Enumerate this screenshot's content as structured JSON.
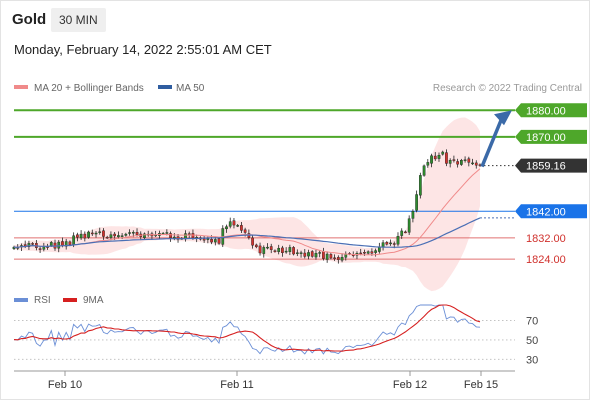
{
  "header": {
    "symbol": "Gold",
    "timeframe": "30 MIN",
    "datetime": "Monday, February 14, 2022 2:55:01 AM CET"
  },
  "colors": {
    "candle_up": "#2e8b2e",
    "candle_down": "#d0312d",
    "ma20": "#f08a8a",
    "bollinger_fill": "#fde0e0",
    "ma50": "#4a6fb5",
    "green_level": "#4ea72a",
    "blue_level": "#1a73e8",
    "red_level": "#e07070",
    "arrow": "#3b6aa8",
    "rsi": "#6b8fd6",
    "rsi_ma": "#d62020"
  },
  "chart_data": [
    {
      "type": "candlestick",
      "legend": [
        {
          "name": "MA 20 + Bollinger Bands",
          "color": "#f08a8a"
        },
        {
          "name": "MA 50",
          "color": "#2f5da0"
        }
      ],
      "attribution": "Research © 2022 Trading Central",
      "x_ticks": [
        "Feb 10",
        "Feb 11",
        "Feb 12",
        "Feb 15"
      ],
      "levels": [
        {
          "value": 1880.0,
          "label": "1880.00",
          "style": "green"
        },
        {
          "value": 1870.0,
          "label": "1870.00",
          "style": "green"
        },
        {
          "value": 1859.16,
          "label": "1859.16",
          "style": "current"
        },
        {
          "value": 1842.0,
          "label": "1842.00",
          "style": "blue"
        },
        {
          "value": 1832.0,
          "label": "1832.00",
          "style": "red"
        },
        {
          "value": 1824.0,
          "label": "1824.00",
          "style": "red"
        }
      ],
      "ylim": [
        1815,
        1885
      ],
      "closes": [
        1828.5,
        1828.4,
        1829.1,
        1828.9,
        1829.9,
        1829.7,
        1828.3,
        1827.8,
        1828.6,
        1828.7,
        1830.3,
        1828.1,
        1830.4,
        1829.2,
        1830.6,
        1829.4,
        1832.8,
        1832.2,
        1833.4,
        1831.9,
        1834.2,
        1833.7,
        1833.8,
        1834.3,
        1832.5,
        1832.1,
        1833.2,
        1832.7,
        1832.9,
        1832.8,
        1833.4,
        1834.0,
        1834.1,
        1833.2,
        1832.4,
        1833.5,
        1833.4,
        1832.7,
        1833.1,
        1833.7,
        1833.7,
        1834.0,
        1832.0,
        1832.3,
        1831.4,
        1831.8,
        1833.6,
        1833.4,
        1832.0,
        1832.2,
        1831.5,
        1831.1,
        1831.7,
        1830.4,
        1831.4,
        1829.9,
        1835.5,
        1836.2,
        1838.1,
        1836.8,
        1836.7,
        1834.8,
        1834.0,
        1832.1,
        1829.2,
        1828.6,
        1826.3,
        1828.4,
        1828.5,
        1827.5,
        1826.9,
        1828.1,
        1826.4,
        1827.0,
        1828.4,
        1825.9,
        1826.4,
        1826.4,
        1825.0,
        1826.5,
        1825.0,
        1826.2,
        1826.5,
        1824.2,
        1825.9,
        1824.4,
        1824.3,
        1823.8,
        1824.7,
        1825.9,
        1826.0,
        1825.6,
        1826.2,
        1826.2,
        1826.4,
        1826.8,
        1826.2,
        1827.2,
        1828.6,
        1830.2,
        1829.6,
        1830.1,
        1829.6,
        1832.6,
        1834.6,
        1834.2,
        1839.2,
        1842.0,
        1848.3,
        1855.5,
        1859.1,
        1860.4,
        1862.9,
        1861.7,
        1863.1,
        1864.3,
        1860.0,
        1861.2,
        1861.1,
        1859.7,
        1861.2,
        1861.4,
        1860.4,
        1860.2,
        1859.3,
        1859.2
      ]
    },
    {
      "type": "line",
      "legend": [
        {
          "name": "RSI",
          "color": "#6b8fd6"
        },
        {
          "name": "9MA",
          "color": "#d62020"
        }
      ],
      "y_ticks": [
        "70",
        "50",
        "30"
      ],
      "ylim": [
        20,
        85
      ],
      "rsi": [
        50.3,
        49.9,
        53.9,
        52.2,
        58.0,
        56.8,
        46.5,
        43.6,
        49.6,
        50.2,
        59.6,
        44.4,
        57.9,
        49.7,
        57.8,
        50.3,
        66.0,
        62.3,
        66.0,
        58.6,
        66.3,
        64.2,
        64.5,
        65.8,
        57.8,
        56.2,
        60.2,
        58.0,
        58.6,
        58.4,
        60.5,
        62.5,
        62.8,
        58.9,
        55.8,
        59.5,
        59.3,
        56.6,
        57.9,
        60.0,
        60.2,
        61.1,
        53.8,
        54.9,
        51.8,
        53.0,
        58.7,
        57.9,
        53.7,
        54.3,
        51.9,
        50.5,
        52.6,
        48.0,
        51.8,
        46.7,
        63.0,
        64.7,
        68.7,
        63.6,
        63.3,
        56.3,
        53.6,
        47.9,
        41.2,
        40.0,
        35.9,
        41.8,
        42.0,
        39.7,
        38.4,
        42.0,
        38.2,
        40.0,
        44.0,
        37.5,
        39.3,
        39.2,
        35.6,
        40.9,
        36.7,
        40.6,
        41.3,
        35.6,
        41.5,
        37.4,
        37.2,
        35.9,
        39.1,
        43.2,
        43.6,
        42.1,
        44.5,
        44.4,
        45.0,
        46.6,
        44.1,
        48.4,
        53.5,
        58.2,
        55.7,
        57.3,
        55.1,
        63.2,
        67.5,
        65.9,
        74.9,
        78.4,
        84.5,
        88.8,
        90.4,
        90.9,
        91.7,
        84.8,
        86.3,
        87.4,
        71.6,
        73.6,
        73.4,
        68.2,
        71.2,
        71.6,
        67.4,
        66.8,
        63.4,
        63.1
      ]
    }
  ]
}
